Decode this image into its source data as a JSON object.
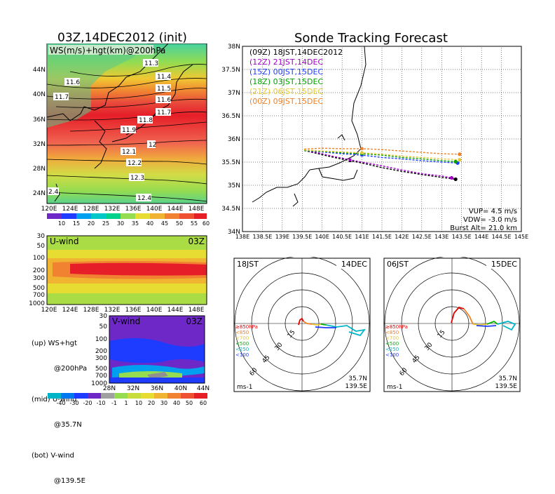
{
  "left_title": "03Z,14DEC2012 (init)",
  "right_title": "Sonde Tracking Forecast",
  "ws_panel": {
    "label": "WS(m/s)+hgt(km)@200hPa",
    "lat_ticks": [
      "24N",
      "28N",
      "32N",
      "36N",
      "40N",
      "44N"
    ],
    "lon_ticks": [
      "120E",
      "124E",
      "128E",
      "132E",
      "136E",
      "140E",
      "144E",
      "148E"
    ],
    "contour_labels": [
      "11.3",
      "11.4",
      "11.5",
      "11.6",
      "11.6",
      "11.7",
      "11.7",
      "11.8",
      "11.9",
      "12",
      "12.1",
      "12.2",
      "12.3",
      "12.4",
      "2.4"
    ],
    "colorbar": [
      "10",
      "15",
      "20",
      "25",
      "30",
      "35",
      "40",
      "45",
      "50",
      "55",
      "60"
    ]
  },
  "u_panel": {
    "label": "U-wind",
    "time": "03Z",
    "p_ticks": [
      "30",
      "50",
      "100",
      "200",
      "300",
      "500",
      "700",
      "1000"
    ],
    "lon_ticks": [
      "120E",
      "124E",
      "128E",
      "132E",
      "136E",
      "140E",
      "144E",
      "148E"
    ]
  },
  "v_panel": {
    "label": "V-wind",
    "time": "03Z",
    "p_ticks": [
      "30",
      "50",
      "100",
      "200",
      "300",
      "500",
      "700",
      "1000"
    ],
    "lat_ticks": [
      "28N",
      "32N",
      "36N",
      "40N",
      "44N"
    ]
  },
  "notes": [
    "(up) WS+hgt",
    "@200hPa",
    "(mid) U-wind",
    "@35.7N",
    "(bot) V-wind",
    "@139.5E"
  ],
  "wind_colorbar": [
    "-40",
    "-30",
    "-20",
    "-10",
    "-1",
    "1",
    "10",
    "20",
    "30",
    "40",
    "50",
    "60"
  ],
  "track_map": {
    "lat_ticks": [
      "34N",
      "34.5N",
      "35N",
      "35.5N",
      "36N",
      "36.5N",
      "37N",
      "37.5N",
      "38N"
    ],
    "lon_ticks": [
      "138E",
      "138.5E",
      "139E",
      "139.5E",
      "140E",
      "140.5E",
      "141E",
      "141.5E",
      "142E",
      "142.5E",
      "143E",
      "143.5E",
      "144E",
      "144.5E",
      "145E"
    ],
    "legend": [
      {
        "text": "(09Z) 18JST,14DEC2012",
        "color": "#000000"
      },
      {
        "text": "(12Z) 21JST,14DEC",
        "color": "#a000c8"
      },
      {
        "text": "(15Z) 00JST,15DEC",
        "color": "#1e3cff"
      },
      {
        "text": "(18Z) 03JST,15DEC",
        "color": "#00a000"
      },
      {
        "text": "(21Z) 06JST,15DEC",
        "color": "#e6c832"
      },
      {
        "text": "(00Z) 09JST,15DEC",
        "color": "#f08228"
      }
    ],
    "params": [
      "VUP= 4.5 m/s",
      "VDW= -3.0 m/s",
      "Burst Alt= 21.0 km"
    ]
  },
  "hodo1": {
    "time": "18JST",
    "date": "14DEC",
    "rings": [
      "15",
      "30",
      "45",
      "60"
    ],
    "unit": "ms-1",
    "lat": "35.7N",
    "lon": "139.5E"
  },
  "hodo2": {
    "time": "06JST",
    "date": "15DEC",
    "rings": [
      "15",
      "30",
      "45",
      "60"
    ],
    "unit": "ms-1",
    "lat": "35.7N",
    "lon": "139.5E"
  },
  "hodo_legend": [
    {
      "text": "≥850hPa",
      "color": "#e60000"
    },
    {
      "text": "<850",
      "color": "#f08228"
    },
    {
      "text": "<700",
      "color": "#e6c832"
    },
    {
      "text": "<500",
      "color": "#00b400"
    },
    {
      "text": "<250",
      "color": "#00b4c8"
    },
    {
      "text": "<100",
      "color": "#1e3cff"
    }
  ],
  "chart_data": [
    {
      "type": "line",
      "title": "Sonde Tracking Forecast",
      "xlabel": "",
      "ylabel": "",
      "xlim": [
        138,
        145
      ],
      "ylim": [
        34,
        38
      ],
      "series": [
        {
          "name": "(09Z) 18JST,14DEC2012",
          "color": "#000000",
          "x": [
            139.55,
            139.9,
            140.3,
            140.7,
            141.0,
            141.5,
            142.0,
            142.5,
            143.0,
            143.35
          ],
          "y": [
            35.75,
            35.68,
            35.6,
            35.53,
            35.48,
            35.38,
            35.3,
            35.23,
            35.17,
            35.13
          ]
        },
        {
          "name": "(12Z) 21JST,14DEC",
          "color": "#a000c8",
          "x": [
            139.55,
            139.9,
            140.3,
            140.7,
            141.0,
            141.5,
            142.0,
            142.5,
            143.0,
            143.25
          ],
          "y": [
            35.75,
            35.7,
            35.62,
            35.55,
            35.5,
            35.42,
            35.33,
            35.25,
            35.2,
            35.16
          ]
        },
        {
          "name": "(15Z) 00JST,15DEC",
          "color": "#1e3cff",
          "x": [
            139.55,
            140.0,
            140.5,
            141.0,
            141.5,
            142.0,
            142.5,
            143.0,
            143.4
          ],
          "y": [
            35.75,
            35.72,
            35.68,
            35.65,
            35.6,
            35.57,
            35.53,
            35.5,
            35.48
          ]
        },
        {
          "name": "(18Z) 03JST,15DEC",
          "color": "#00a000",
          "x": [
            139.55,
            140.0,
            140.5,
            141.0,
            141.5,
            142.0,
            142.5,
            143.0,
            143.35
          ],
          "y": [
            35.75,
            35.73,
            35.7,
            35.68,
            35.65,
            35.6,
            35.57,
            35.53,
            35.51
          ]
        },
        {
          "name": "(21Z) 06JST,15DEC",
          "color": "#e6c832",
          "x": [
            139.55,
            140.0,
            140.5,
            141.0,
            141.5,
            142.0,
            142.5,
            143.0,
            143.45
          ],
          "y": [
            35.76,
            35.74,
            35.72,
            35.7,
            35.67,
            35.63,
            35.6,
            35.57,
            35.55
          ]
        },
        {
          "name": "(00Z) 09JST,15DEC",
          "color": "#f08228",
          "x": [
            139.55,
            140.0,
            140.5,
            141.0,
            141.5,
            142.0,
            142.5,
            143.0,
            143.45
          ],
          "y": [
            35.78,
            35.8,
            35.79,
            35.79,
            35.77,
            35.74,
            35.71,
            35.68,
            35.67
          ]
        }
      ]
    }
  ]
}
